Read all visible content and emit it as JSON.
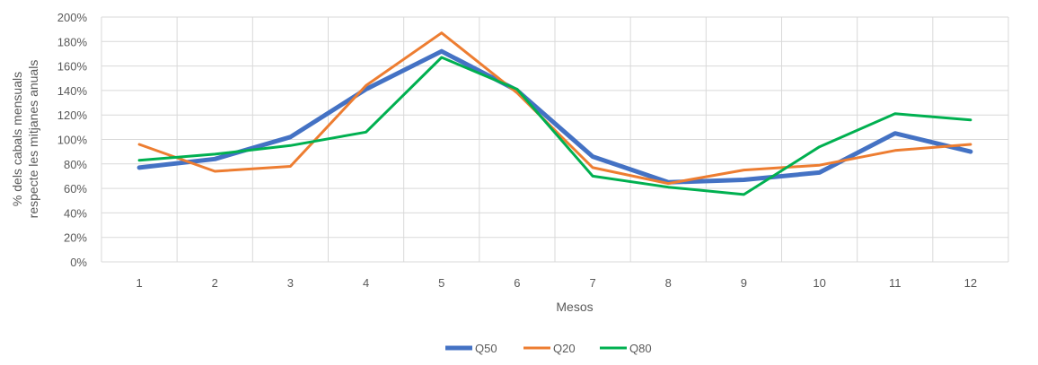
{
  "chart_data": {
    "type": "line",
    "title": "",
    "xlabel": "Mesos",
    "ylabel_lines": [
      "% dels cabals mensuals",
      "respecte  les mitjanes anuals"
    ],
    "categories": [
      "1",
      "2",
      "3",
      "4",
      "5",
      "6",
      "7",
      "8",
      "9",
      "10",
      "11",
      "12"
    ],
    "ylim": [
      0,
      200
    ],
    "y_ticks": [
      0,
      20,
      40,
      60,
      80,
      100,
      120,
      140,
      160,
      180,
      200
    ],
    "y_tick_labels": [
      "0%",
      "20%",
      "40%",
      "60%",
      "80%",
      "100%",
      "120%",
      "140%",
      "160%",
      "180%",
      "200%"
    ],
    "grid": true,
    "legend_position": "bottom",
    "series": [
      {
        "name": "Q50",
        "color": "#4472C4",
        "values": [
          77,
          84,
          102,
          141,
          172,
          140,
          86,
          65,
          67,
          73,
          105,
          90
        ]
      },
      {
        "name": "Q20",
        "color": "#ED7D31",
        "values": [
          96,
          74,
          78,
          144,
          187,
          138,
          77,
          64,
          75,
          79,
          91,
          96
        ]
      },
      {
        "name": "Q80",
        "color": "#00B050",
        "values": [
          83,
          88,
          95,
          106,
          167,
          141,
          70,
          61,
          55,
          94,
          121,
          116
        ]
      }
    ]
  }
}
